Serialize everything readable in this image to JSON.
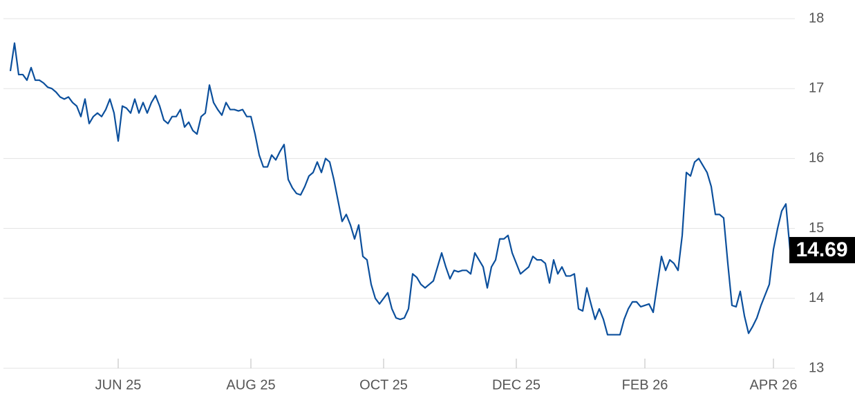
{
  "chart_data": {
    "type": "line",
    "categories": [
      null,
      null,
      null,
      null,
      null,
      null,
      null,
      null,
      null,
      null,
      null,
      null,
      null,
      null,
      null,
      null,
      null,
      null,
      null,
      null,
      null,
      null,
      null,
      null,
      null,
      null,
      "JUN 25",
      null,
      null,
      null,
      null,
      null,
      null,
      null,
      null,
      null,
      null,
      null,
      null,
      null,
      null,
      null,
      null,
      null,
      null,
      null,
      null,
      null,
      null,
      null,
      null,
      null,
      null,
      null,
      null,
      null,
      null,
      null,
      "AUG 25",
      null,
      null,
      null,
      null,
      null,
      null,
      null,
      null,
      null,
      null,
      null,
      null,
      null,
      null,
      null,
      null,
      null,
      null,
      null,
      null,
      null,
      null,
      null,
      null,
      null,
      null,
      null,
      null,
      null,
      null,
      null,
      "OCT 25",
      null,
      null,
      null,
      null,
      null,
      null,
      null,
      null,
      null,
      null,
      null,
      null,
      null,
      null,
      null,
      null,
      null,
      null,
      null,
      null,
      null,
      null,
      null,
      null,
      null,
      null,
      null,
      null,
      null,
      null,
      null,
      "DEC 25",
      null,
      null,
      null,
      null,
      null,
      null,
      null,
      null,
      null,
      null,
      null,
      null,
      null,
      null,
      null,
      null,
      null,
      null,
      null,
      null,
      null,
      null,
      null,
      null,
      null,
      null,
      null,
      null,
      null,
      null,
      "FEB 26",
      null,
      null,
      null,
      null,
      null,
      null,
      null,
      null,
      null,
      null,
      null,
      null,
      null,
      null,
      null,
      null,
      null,
      null,
      null,
      null,
      null,
      null,
      null,
      null,
      null,
      null,
      null,
      null,
      null,
      null,
      "APR 26",
      null,
      null,
      null,
      null
    ],
    "values": [
      17.25,
      17.65,
      17.2,
      17.2,
      17.12,
      17.3,
      17.12,
      17.12,
      17.08,
      17.02,
      17.0,
      16.95,
      16.88,
      16.85,
      16.88,
      16.8,
      16.75,
      16.6,
      16.85,
      16.5,
      16.6,
      16.65,
      16.6,
      16.7,
      16.85,
      16.65,
      16.25,
      16.75,
      16.72,
      16.65,
      16.85,
      16.65,
      16.8,
      16.65,
      16.8,
      16.9,
      16.75,
      16.55,
      16.5,
      16.6,
      16.6,
      16.7,
      16.45,
      16.52,
      16.4,
      16.35,
      16.6,
      16.65,
      17.05,
      16.8,
      16.7,
      16.62,
      16.8,
      16.7,
      16.7,
      16.68,
      16.7,
      16.6,
      16.6,
      16.35,
      16.05,
      15.88,
      15.88,
      16.05,
      15.98,
      16.1,
      16.2,
      15.7,
      15.58,
      15.5,
      15.48,
      15.6,
      15.75,
      15.8,
      15.95,
      15.8,
      16.0,
      15.95,
      15.7,
      15.4,
      15.1,
      15.2,
      15.05,
      14.85,
      15.05,
      14.6,
      14.55,
      14.2,
      14.0,
      13.92,
      14.0,
      14.08,
      13.85,
      13.72,
      13.7,
      13.72,
      13.85,
      14.35,
      14.3,
      14.2,
      14.15,
      14.2,
      14.25,
      14.45,
      14.65,
      14.45,
      14.28,
      14.4,
      14.38,
      14.4,
      14.4,
      14.35,
      14.65,
      14.55,
      14.45,
      14.15,
      14.45,
      14.55,
      14.85,
      14.85,
      14.9,
      14.65,
      14.5,
      14.35,
      14.4,
      14.45,
      14.6,
      14.55,
      14.55,
      14.5,
      14.22,
      14.55,
      14.35,
      14.45,
      14.32,
      14.32,
      14.35,
      13.85,
      13.82,
      14.15,
      13.92,
      13.7,
      13.85,
      13.7,
      13.48,
      13.48,
      13.48,
      13.48,
      13.7,
      13.85,
      13.95,
      13.95,
      13.88,
      13.9,
      13.92,
      13.8,
      14.2,
      14.6,
      14.4,
      14.55,
      14.5,
      14.4,
      14.9,
      15.8,
      15.75,
      15.95,
      16.0,
      15.9,
      15.8,
      15.6,
      15.2,
      15.2,
      15.15,
      14.5,
      13.9,
      13.88,
      14.1,
      13.75,
      13.5,
      13.6,
      13.72,
      13.9,
      14.05,
      14.2,
      14.7,
      15.0,
      15.25,
      15.35,
      14.69
    ],
    "color": "#0b4f9c",
    "ylim": [
      13,
      18
    ],
    "yticks": [
      13,
      14,
      15,
      16,
      17,
      18
    ],
    "grid": true
  }
}
